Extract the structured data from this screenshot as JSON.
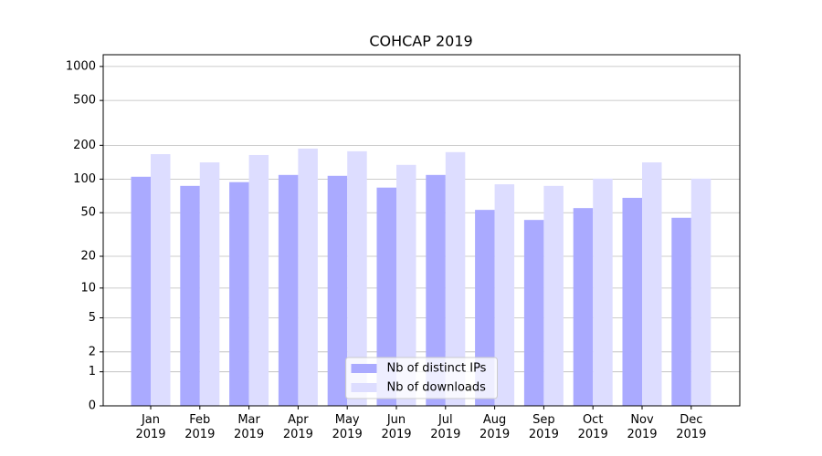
{
  "chart_data": {
    "type": "bar",
    "title": "COHCAP 2019",
    "categories": [
      "Jan\n2019",
      "Feb\n2019",
      "Mar\n2019",
      "Apr\n2019",
      "May\n2019",
      "Jun\n2019",
      "Jul\n2019",
      "Aug\n2019",
      "Sep\n2019",
      "Oct\n2019",
      "Nov\n2019",
      "Dec\n2019"
    ],
    "series": [
      {
        "name": "Nb of distinct IPs",
        "color": "#aaaaff",
        "values": [
          105,
          87,
          94,
          109,
          107,
          84,
          109,
          53,
          43,
          55,
          68,
          45
        ]
      },
      {
        "name": "Nb of downloads",
        "color": "#ddddff",
        "values": [
          167,
          141,
          164,
          187,
          177,
          134,
          174,
          90,
          87,
          101,
          141,
          101
        ]
      }
    ],
    "yscale": "log1p",
    "ylim": [
      0,
      1270
    ],
    "yticks": [
      0,
      1,
      2,
      5,
      10,
      20,
      50,
      100,
      200,
      500,
      1000
    ],
    "grid": true,
    "legend": "lower center"
  }
}
